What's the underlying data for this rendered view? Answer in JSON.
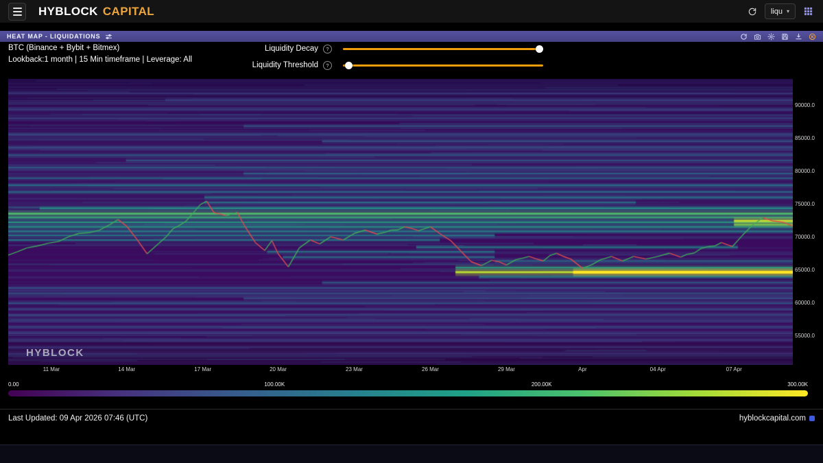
{
  "topbar": {
    "brand_primary": "HYBLOCK",
    "brand_secondary": "CAPITAL",
    "symbol_query": "liqu"
  },
  "icons": {
    "info_glyph": "?",
    "caret_glyph": "▾"
  },
  "panel": {
    "header_title": "HEAT MAP - LIQUIDATIONS",
    "info_line1": "BTC (Binance + Bybit + Bitmex)",
    "info_line2": "Lookback:1 month | 15 Min timeframe | Leverage: All",
    "controls": {
      "decay_label": "Liquidity Decay",
      "threshold_label": "Liquidity Threshold",
      "decay_value": 1.0,
      "threshold_value": 0.01
    },
    "watermark": "HYBLOCK"
  },
  "footer": {
    "last_updated": "Last Updated: 09 Apr 2026 07:46 (UTC)",
    "site": "hyblockcapital.com"
  },
  "chart_data": {
    "type": "heatmap",
    "title": "BTC liquidation heatmap, 1 month lookback, 15 min timeframe, all leverage",
    "y_range": {
      "min": 50500,
      "max": 94000
    },
    "y_ticks": [
      {
        "label": "90000.0",
        "value": 90000
      },
      {
        "label": "85000.0",
        "value": 85000
      },
      {
        "label": "80000.0",
        "value": 80000
      },
      {
        "label": "75000.0",
        "value": 75000
      },
      {
        "label": "70000.0",
        "value": 70000
      },
      {
        "label": "65000.0",
        "value": 65000
      },
      {
        "label": "60000.0",
        "value": 60000
      },
      {
        "label": "55000.0",
        "value": 55000
      }
    ],
    "x_ticks": [
      {
        "label": "11 Mar",
        "t": 0.055
      },
      {
        "label": "14 Mar",
        "t": 0.151
      },
      {
        "label": "17 Mar",
        "t": 0.248
      },
      {
        "label": "20 Mar",
        "t": 0.344
      },
      {
        "label": "23 Mar",
        "t": 0.441
      },
      {
        "label": "26 Mar",
        "t": 0.538
      },
      {
        "label": "29 Mar",
        "t": 0.635
      },
      {
        "label": "Apr",
        "t": 0.732
      },
      {
        "label": "04 Apr",
        "t": 0.828
      },
      {
        "label": "07 Apr",
        "t": 0.925
      }
    ],
    "colorbar": {
      "min": 0,
      "max": 300000,
      "ticks": [
        {
          "label": "0.00",
          "t": 0
        },
        {
          "label": "100.00K",
          "t": 0.333
        },
        {
          "label": "200.00K",
          "t": 0.667
        },
        {
          "label": "300.00K",
          "t": 1
        }
      ],
      "colors": [
        "#440154",
        "#46327e",
        "#365c8d",
        "#277f8e",
        "#1fa187",
        "#4ac16d",
        "#a0da39",
        "#fde725"
      ]
    },
    "price_line_format": [
      "x_fraction",
      "price_thousand_usd"
    ],
    "price_line": [
      [
        0,
        67.2
      ],
      [
        0.024,
        68.3
      ],
      [
        0.051,
        69
      ],
      [
        0.077,
        70
      ],
      [
        0.103,
        70.6
      ],
      [
        0.129,
        71.8
      ],
      [
        0.14,
        72.6
      ],
      [
        0.151,
        71.6
      ],
      [
        0.164,
        69.6
      ],
      [
        0.177,
        67.4
      ],
      [
        0.192,
        69
      ],
      [
        0.21,
        71.2
      ],
      [
        0.227,
        72.4
      ],
      [
        0.245,
        74.9
      ],
      [
        0.253,
        75.4
      ],
      [
        0.262,
        73.7
      ],
      [
        0.278,
        73.2
      ],
      [
        0.292,
        73.7
      ],
      [
        0.301,
        71.7
      ],
      [
        0.315,
        69.1
      ],
      [
        0.327,
        67.9
      ],
      [
        0.336,
        69.4
      ],
      [
        0.344,
        67.4
      ],
      [
        0.357,
        65.4
      ],
      [
        0.371,
        68.3
      ],
      [
        0.385,
        69.5
      ],
      [
        0.397,
        68.9
      ],
      [
        0.411,
        70
      ],
      [
        0.427,
        69.5
      ],
      [
        0.441,
        70.5
      ],
      [
        0.455,
        71
      ],
      [
        0.47,
        70.4
      ],
      [
        0.488,
        71
      ],
      [
        0.505,
        71.5
      ],
      [
        0.523,
        70.9
      ],
      [
        0.538,
        71.5
      ],
      [
        0.551,
        70.4
      ],
      [
        0.564,
        69.4
      ],
      [
        0.577,
        67.8
      ],
      [
        0.59,
        66.2
      ],
      [
        0.603,
        65.6
      ],
      [
        0.616,
        66.4
      ],
      [
        0.635,
        65.7
      ],
      [
        0.647,
        66.5
      ],
      [
        0.664,
        67
      ],
      [
        0.682,
        66.3
      ],
      [
        0.699,
        67.5
      ],
      [
        0.717,
        66.6
      ],
      [
        0.732,
        65.2
      ],
      [
        0.755,
        66.5
      ],
      [
        0.769,
        67
      ],
      [
        0.783,
        66.3
      ],
      [
        0.797,
        67
      ],
      [
        0.813,
        66.6
      ],
      [
        0.828,
        67
      ],
      [
        0.843,
        67.5
      ],
      [
        0.857,
        66.9
      ],
      [
        0.874,
        67.5
      ],
      [
        0.892,
        68.5
      ],
      [
        0.909,
        69.1
      ],
      [
        0.923,
        68.5
      ],
      [
        0.935,
        70.1
      ],
      [
        0.948,
        71.7
      ],
      [
        0.962,
        72.9
      ],
      [
        0.974,
        72.4
      ],
      [
        0.988,
        72.2
      ],
      [
        1,
        71.6
      ]
    ],
    "band_fields": [
      "price_thousand_usd",
      "from_fraction",
      "to_fraction",
      "intensity_0to1",
      "width_px"
    ],
    "liquidation_bands": [
      [
        73.5,
        0,
        1,
        0.72,
        3
      ],
      [
        72.9,
        0,
        1,
        0.66,
        2
      ],
      [
        72.2,
        0,
        1,
        0.6,
        2
      ],
      [
        71.5,
        0,
        1,
        0.56,
        2
      ],
      [
        74.3,
        0.04,
        1,
        0.55,
        2
      ],
      [
        70.8,
        0,
        1,
        0.5,
        2
      ],
      [
        70.2,
        0,
        0.62,
        0.5,
        2
      ],
      [
        69.5,
        0,
        0.55,
        0.48,
        2
      ],
      [
        64.6,
        0.57,
        1,
        0.9,
        3
      ],
      [
        64.6,
        0.72,
        1,
        1,
        4
      ],
      [
        65.3,
        0.57,
        1,
        0.62,
        2
      ],
      [
        63.9,
        0.6,
        1,
        0.5,
        2
      ],
      [
        72.4,
        0.925,
        1,
        0.92,
        3
      ],
      [
        71.8,
        0.925,
        1,
        0.8,
        2
      ],
      [
        68.4,
        0.52,
        0.93,
        0.5,
        2
      ],
      [
        67.7,
        0.33,
        0.62,
        0.46,
        2
      ],
      [
        66.9,
        0.35,
        0.62,
        0.44,
        2
      ],
      [
        66.3,
        0.62,
        1,
        0.42,
        2
      ],
      [
        75.2,
        0.25,
        0.8,
        0.44,
        2
      ],
      [
        76,
        0.25,
        1,
        0.46,
        2
      ],
      [
        76.8,
        0,
        1,
        0.42,
        2
      ],
      [
        77.8,
        0,
        1,
        0.44,
        2
      ],
      [
        78.9,
        0,
        1,
        0.4,
        2
      ],
      [
        79.6,
        0.3,
        1,
        0.38,
        2
      ],
      [
        80.5,
        0,
        1,
        0.36,
        2
      ],
      [
        81.6,
        0.15,
        1,
        0.34,
        2
      ],
      [
        82.4,
        0,
        1,
        0.36,
        2
      ],
      [
        83.6,
        0,
        1,
        0.3,
        2
      ],
      [
        84.5,
        0.4,
        1,
        0.32,
        2
      ],
      [
        85.6,
        0,
        1,
        0.28,
        2
      ],
      [
        86.8,
        0.3,
        1,
        0.3,
        2
      ],
      [
        88,
        0,
        1,
        0.27,
        2
      ],
      [
        89.3,
        0,
        1,
        0.24,
        2
      ],
      [
        90.8,
        0.2,
        1,
        0.22,
        2
      ],
      [
        91.8,
        0,
        1,
        0.2,
        2
      ],
      [
        63,
        0.4,
        1,
        0.36,
        2
      ],
      [
        62.2,
        0,
        1,
        0.32,
        2
      ],
      [
        61.4,
        0,
        1,
        0.34,
        2
      ],
      [
        60.6,
        0.3,
        1,
        0.3,
        2
      ],
      [
        59.9,
        0,
        1,
        0.34,
        2
      ],
      [
        59,
        0,
        1,
        0.28,
        2
      ],
      [
        58.1,
        0,
        1,
        0.3,
        2
      ],
      [
        57.2,
        0,
        1,
        0.26,
        2
      ],
      [
        56.3,
        0,
        1,
        0.27,
        2
      ],
      [
        55.3,
        0,
        1,
        0.23,
        2
      ],
      [
        54.3,
        0,
        1,
        0.22,
        2
      ],
      [
        53.2,
        0,
        1,
        0.2,
        2
      ],
      [
        52.2,
        0,
        1,
        0.18,
        2
      ]
    ]
  }
}
